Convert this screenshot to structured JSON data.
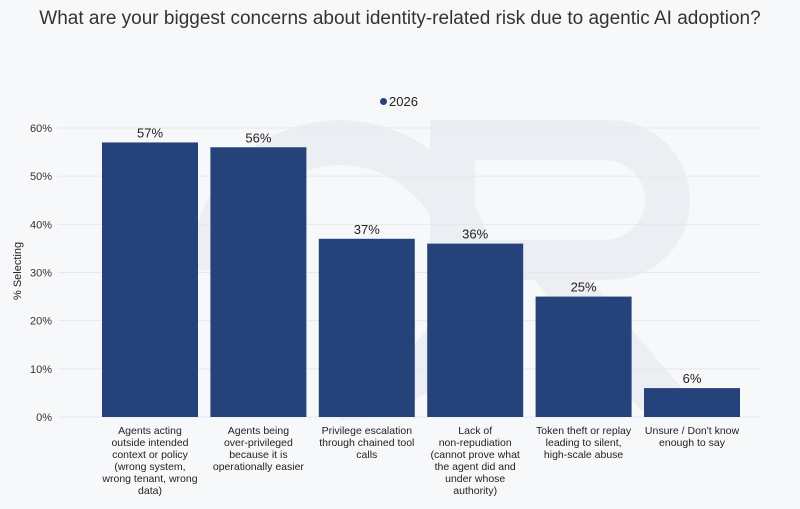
{
  "chart_data": {
    "type": "bar",
    "title": "What are your biggest concerns about identity-related risk due to agentic AI adoption?",
    "ylabel": "% Selecting",
    "xlabel": "",
    "ylim": [
      0,
      60
    ],
    "yticks": [
      "0%",
      "10%",
      "20%",
      "30%",
      "40%",
      "50%",
      "60%"
    ],
    "grid": true,
    "legend_position": "top-center",
    "series": [
      {
        "name": "2026",
        "color": "#25427a",
        "values": [
          57,
          56,
          37,
          36,
          25,
          6
        ],
        "labels": [
          "57%",
          "56%",
          "37%",
          "36%",
          "25%",
          "6%"
        ]
      }
    ],
    "categories": [
      [
        "Agents acting",
        "outside intended",
        "context or policy",
        "(wrong system,",
        "wrong tenant, wrong",
        "data)"
      ],
      [
        "Agents being",
        "over-privileged",
        "because it is",
        "operationally easier"
      ],
      [
        "Privilege escalation",
        "through chained tool",
        "calls"
      ],
      [
        "Lack of",
        "non-repudiation",
        "(cannot prove what",
        "the agent did and",
        "under whose",
        "authority)"
      ],
      [
        "Token theft or replay",
        "leading to silent,",
        "high-scale abuse"
      ],
      [
        "Unsure / Don't know",
        "enough to say"
      ]
    ]
  }
}
